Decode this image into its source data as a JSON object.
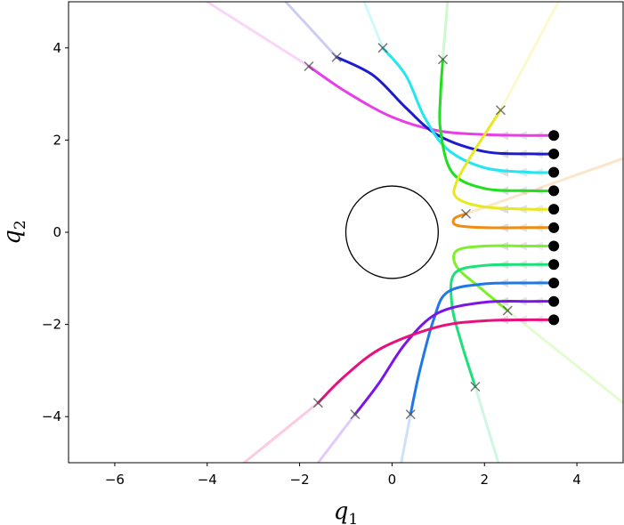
{
  "chart_data": {
    "type": "line",
    "title": "",
    "xlabel": "q",
    "xlabel_sub": "1",
    "ylabel": "q",
    "ylabel_sub": "2",
    "xlim": [
      -7,
      5
    ],
    "ylim": [
      -5,
      5
    ],
    "xticks": [
      -6,
      -4,
      -2,
      0,
      2,
      4
    ],
    "yticks": [
      -4,
      -2,
      0,
      2,
      4
    ],
    "xtick_labels": [
      "−6",
      "−4",
      "−2",
      "0",
      "2",
      "4"
    ],
    "ytick_labels": [
      "−4",
      "−2",
      "0",
      "2",
      "4"
    ],
    "grid": false,
    "legend": "none",
    "obstacle": {
      "shape": "circle",
      "center": [
        0,
        0
      ],
      "radius": 1
    },
    "series": [
      {
        "color": "#e83ee8",
        "start": [
          3.5,
          2.1
        ],
        "points": [
          [
            3.5,
            2.1
          ],
          [
            3.0,
            2.1
          ],
          [
            2.0,
            2.12
          ],
          [
            1.0,
            2.2
          ],
          [
            0.0,
            2.5
          ],
          [
            -1.0,
            3.05
          ],
          [
            -1.8,
            3.6
          ]
        ],
        "end": [
          -1.8,
          3.6
        ],
        "extension": [
          [
            -1.8,
            3.6
          ],
          [
            -4.0,
            5.0
          ]
        ]
      },
      {
        "color": "#1c1ccc",
        "start": [
          3.5,
          1.7
        ],
        "points": [
          [
            3.5,
            1.7
          ],
          [
            3.0,
            1.7
          ],
          [
            2.0,
            1.75
          ],
          [
            1.0,
            2.1
          ],
          [
            0.3,
            2.7
          ],
          [
            -0.4,
            3.4
          ],
          [
            -1.2,
            3.8
          ]
        ],
        "end": [
          -1.2,
          3.8
        ],
        "extension": [
          [
            -1.2,
            3.8
          ],
          [
            -2.3,
            5.0
          ]
        ]
      },
      {
        "color": "#22e6f0",
        "start": [
          3.5,
          1.3
        ],
        "points": [
          [
            3.5,
            1.3
          ],
          [
            3.0,
            1.3
          ],
          [
            2.0,
            1.4
          ],
          [
            1.2,
            1.8
          ],
          [
            0.7,
            2.5
          ],
          [
            0.3,
            3.4
          ],
          [
            -0.2,
            4.0
          ]
        ],
        "end": [
          -0.2,
          4.0
        ],
        "extension": [
          [
            -0.2,
            4.0
          ],
          [
            -0.6,
            5.0
          ]
        ]
      },
      {
        "color": "#1ee01e",
        "start": [
          3.5,
          0.9
        ],
        "points": [
          [
            3.5,
            0.9
          ],
          [
            3.0,
            0.9
          ],
          [
            2.0,
            0.95
          ],
          [
            1.3,
            1.3
          ],
          [
            1.05,
            2.2
          ],
          [
            1.05,
            3.0
          ],
          [
            1.1,
            3.75
          ]
        ],
        "end": [
          1.1,
          3.75
        ],
        "extension": [
          [
            1.1,
            3.75
          ],
          [
            1.2,
            5.0
          ]
        ]
      },
      {
        "color": "#e8e820",
        "start": [
          3.5,
          0.5
        ],
        "points": [
          [
            3.5,
            0.5
          ],
          [
            3.0,
            0.5
          ],
          [
            2.0,
            0.55
          ],
          [
            1.4,
            0.75
          ],
          [
            1.4,
            1.1
          ],
          [
            1.8,
            1.8
          ],
          [
            2.35,
            2.65
          ]
        ],
        "end": [
          2.35,
          2.65
        ],
        "extension": [
          [
            2.35,
            2.65
          ],
          [
            3.6,
            5.0
          ]
        ]
      },
      {
        "color": "#f08c10",
        "start": [
          3.5,
          0.1
        ],
        "points": [
          [
            3.5,
            0.1
          ],
          [
            3.0,
            0.1
          ],
          [
            2.0,
            0.1
          ],
          [
            1.4,
            0.15
          ],
          [
            1.35,
            0.3
          ],
          [
            1.6,
            0.4
          ]
        ],
        "end": [
          1.6,
          0.4
        ],
        "extension": [
          [
            1.6,
            0.4
          ],
          [
            5.0,
            1.6
          ]
        ]
      },
      {
        "color": "#7ef02a",
        "start": [
          3.5,
          -0.3
        ],
        "points": [
          [
            3.5,
            -0.3
          ],
          [
            3.0,
            -0.3
          ],
          [
            2.0,
            -0.3
          ],
          [
            1.4,
            -0.4
          ],
          [
            1.4,
            -0.75
          ],
          [
            1.9,
            -1.2
          ],
          [
            2.5,
            -1.7
          ]
        ],
        "end": [
          2.5,
          -1.7
        ],
        "extension": [
          [
            2.5,
            -1.7
          ],
          [
            5.0,
            -3.7
          ]
        ]
      },
      {
        "color": "#1ee07a",
        "start": [
          3.5,
          -0.7
        ],
        "points": [
          [
            3.5,
            -0.7
          ],
          [
            3.0,
            -0.7
          ],
          [
            2.0,
            -0.72
          ],
          [
            1.35,
            -0.9
          ],
          [
            1.3,
            -1.6
          ],
          [
            1.5,
            -2.4
          ],
          [
            1.8,
            -3.35
          ]
        ],
        "end": [
          1.8,
          -3.35
        ],
        "extension": [
          [
            1.8,
            -3.35
          ],
          [
            2.3,
            -5.0
          ]
        ]
      },
      {
        "color": "#1e78e8",
        "start": [
          3.5,
          -1.1
        ],
        "points": [
          [
            3.5,
            -1.1
          ],
          [
            3.0,
            -1.1
          ],
          [
            2.0,
            -1.12
          ],
          [
            1.2,
            -1.3
          ],
          [
            0.9,
            -1.9
          ],
          [
            0.6,
            -3.0
          ],
          [
            0.4,
            -3.95
          ]
        ],
        "end": [
          0.4,
          -3.95
        ],
        "extension": [
          [
            0.4,
            -3.95
          ],
          [
            0.2,
            -5.0
          ]
        ]
      },
      {
        "color": "#7a14e8",
        "start": [
          3.5,
          -1.5
        ],
        "points": [
          [
            3.5,
            -1.5
          ],
          [
            3.0,
            -1.5
          ],
          [
            2.0,
            -1.52
          ],
          [
            1.0,
            -1.75
          ],
          [
            0.3,
            -2.4
          ],
          [
            -0.3,
            -3.3
          ],
          [
            -0.8,
            -3.95
          ]
        ],
        "end": [
          -0.8,
          -3.95
        ],
        "extension": [
          [
            -0.8,
            -3.95
          ],
          [
            -1.6,
            -5.0
          ]
        ]
      },
      {
        "color": "#e8107a",
        "start": [
          3.5,
          -1.9
        ],
        "points": [
          [
            3.5,
            -1.9
          ],
          [
            3.0,
            -1.9
          ],
          [
            2.0,
            -1.92
          ],
          [
            1.0,
            -2.05
          ],
          [
            -0.2,
            -2.5
          ],
          [
            -1.0,
            -3.1
          ],
          [
            -1.6,
            -3.7
          ]
        ],
        "end": [
          -1.6,
          -3.7
        ],
        "extension": [
          [
            -1.6,
            -3.7
          ],
          [
            -3.2,
            -5.0
          ]
        ]
      }
    ]
  }
}
